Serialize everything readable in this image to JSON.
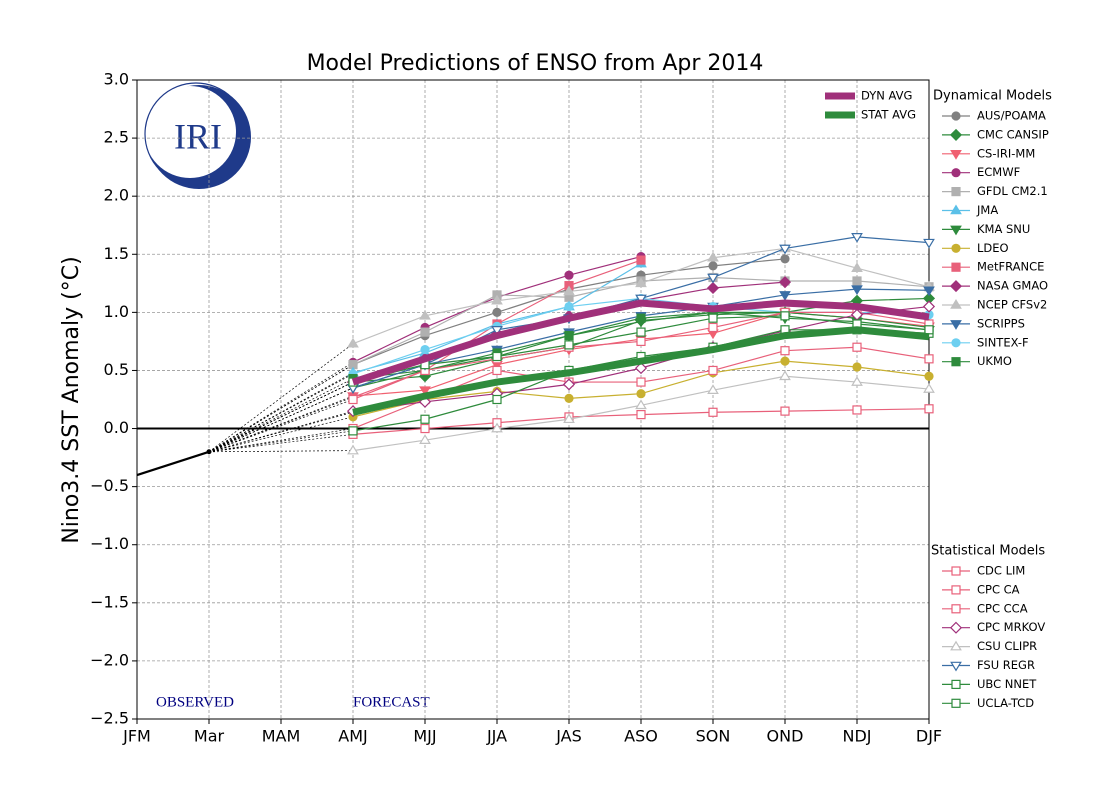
{
  "chart_data": {
    "type": "line",
    "title": "Model Predictions of ENSO from Apr 2014",
    "ylabel": "Nino3.4 SST Anomaly (°C)",
    "logo_text": "IRI",
    "annotations": {
      "observed": "OBSERVED",
      "forecast": "FORECAST"
    },
    "categories": [
      "JFM",
      "Mar",
      "MAM",
      "AMJ",
      "MJJ",
      "JJA",
      "JAS",
      "ASO",
      "SON",
      "OND",
      "NDJ",
      "DJF"
    ],
    "ylim": [
      -2.5,
      3.0
    ],
    "yticks": [
      {
        "value": -2.5,
        "label": "−2.5"
      },
      {
        "value": -2.0,
        "label": "−2.0"
      },
      {
        "value": -1.5,
        "label": "−1.5"
      },
      {
        "value": -1.0,
        "label": "−1.0"
      },
      {
        "value": -0.5,
        "label": "−0.5"
      },
      {
        "value": 0.0,
        "label": "0.0"
      },
      {
        "value": 0.5,
        "label": "0.5"
      },
      {
        "value": 1.0,
        "label": "1.0"
      },
      {
        "value": 1.5,
        "label": "1.5"
      },
      {
        "value": 2.0,
        "label": "2.0"
      },
      {
        "value": 2.5,
        "label": "2.5"
      },
      {
        "value": 3.0,
        "label": "3.0"
      }
    ],
    "grid": true,
    "observed": {
      "color": "#000000",
      "values": [
        -0.4,
        -0.2,
        null,
        null,
        null,
        null,
        null,
        null,
        null,
        null,
        null,
        null
      ]
    },
    "averages": [
      {
        "name": "DYN AVG",
        "color": "#a0307a",
        "values": [
          null,
          null,
          null,
          0.4,
          0.6,
          0.8,
          0.95,
          1.08,
          1.03,
          1.08,
          1.05,
          0.96
        ]
      },
      {
        "name": "STAT AVG",
        "color": "#2e8b3c",
        "values": [
          null,
          null,
          null,
          0.14,
          0.28,
          0.4,
          0.48,
          0.58,
          0.68,
          0.8,
          0.85,
          0.79
        ]
      }
    ],
    "dynamical": {
      "title": "Dynamical Models",
      "series": [
        {
          "name": "AUS/POAMA",
          "color": "#808080",
          "marker": "circle",
          "filled": true,
          "values": [
            null,
            null,
            null,
            0.55,
            0.8,
            1.0,
            1.2,
            1.32,
            1.4,
            1.46,
            null,
            null
          ]
        },
        {
          "name": "CMC CANSIP",
          "color": "#2e8b3c",
          "marker": "diamond",
          "filled": true,
          "values": [
            null,
            null,
            null,
            0.4,
            0.45,
            0.6,
            0.7,
            0.93,
            0.98,
            1.0,
            1.1,
            1.12
          ]
        },
        {
          "name": "CS-IRI-MM",
          "color": "#f06070",
          "marker": "tri-down",
          "filled": true,
          "values": [
            null,
            null,
            null,
            0.28,
            0.33,
            0.55,
            0.68,
            0.77,
            0.82,
            1.0,
            0.95,
            0.88
          ]
        },
        {
          "name": "ECMWF",
          "color": "#a0307a",
          "marker": "circle",
          "filled": true,
          "values": [
            null,
            null,
            null,
            0.57,
            0.87,
            1.13,
            1.32,
            1.48,
            null,
            null,
            null,
            null
          ]
        },
        {
          "name": "GFDL CM2.1",
          "color": "#b0b0b0",
          "marker": "square",
          "filled": true,
          "values": [
            null,
            null,
            null,
            0.55,
            0.83,
            1.15,
            1.13,
            1.27,
            1.3,
            1.27,
            1.27,
            1.22
          ]
        },
        {
          "name": "JMA",
          "color": "#5bc0e8",
          "marker": "tri-up",
          "filled": true,
          "values": [
            null,
            null,
            null,
            0.48,
            0.65,
            0.9,
            1.05,
            1.42,
            null,
            null,
            null,
            null
          ]
        },
        {
          "name": "KMA SNU",
          "color": "#2e8b3c",
          "marker": "tri-down",
          "filled": true,
          "values": [
            null,
            null,
            null,
            0.35,
            0.5,
            0.62,
            0.8,
            0.92,
            1.0,
            0.95,
            0.92,
            0.85
          ]
        },
        {
          "name": "LDEO",
          "color": "#c8b030",
          "marker": "circle",
          "filled": true,
          "values": [
            null,
            null,
            null,
            0.1,
            0.25,
            0.32,
            0.26,
            0.3,
            0.48,
            0.58,
            0.53,
            0.45
          ]
        },
        {
          "name": "MetFRANCE",
          "color": "#e8607a",
          "marker": "square",
          "filled": true,
          "values": [
            null,
            null,
            null,
            0.27,
            0.5,
            0.9,
            1.23,
            1.45,
            null,
            null,
            null,
            null
          ]
        },
        {
          "name": "NASA GMAO",
          "color": "#a0307a",
          "marker": "diamond",
          "filled": true,
          "values": [
            null,
            null,
            null,
            0.4,
            0.6,
            0.82,
            0.97,
            1.1,
            1.21,
            1.26,
            null,
            null
          ]
        },
        {
          "name": "NCEP CFSv2",
          "color": "#c0c0c0",
          "marker": "tri-up",
          "filled": true,
          "values": [
            null,
            null,
            null,
            0.73,
            0.97,
            1.1,
            1.18,
            1.25,
            1.47,
            1.55,
            1.38,
            1.22
          ]
        },
        {
          "name": "SCRIPPS",
          "color": "#3a6ea5",
          "marker": "tri-down",
          "filled": true,
          "values": [
            null,
            null,
            null,
            0.35,
            0.55,
            0.68,
            0.83,
            0.97,
            1.05,
            1.15,
            1.2,
            1.19
          ]
        },
        {
          "name": "SINTEX-F",
          "color": "#6dcff0",
          "marker": "circle",
          "filled": true,
          "values": [
            null,
            null,
            null,
            0.47,
            0.68,
            0.88,
            1.05,
            1.12,
            1.05,
            1.0,
            1.0,
            0.98
          ]
        },
        {
          "name": "UKMO",
          "color": "#2e8b3c",
          "marker": "square",
          "filled": true,
          "values": [
            null,
            null,
            null,
            0.43,
            0.5,
            0.65,
            0.8,
            0.95,
            1.0,
            1.0,
            0.95,
            0.87
          ]
        }
      ]
    },
    "statistical": {
      "title": "Statistical Models",
      "series": [
        {
          "name": "CDC LIM",
          "color": "#e8607a",
          "marker": "square",
          "filled": false,
          "values": [
            null,
            null,
            null,
            -0.05,
            0.0,
            0.05,
            0.1,
            0.12,
            0.14,
            0.15,
            0.16,
            0.17
          ]
        },
        {
          "name": "CPC CA",
          "color": "#e8607a",
          "marker": "square",
          "filled": false,
          "values": [
            null,
            null,
            null,
            0.0,
            0.25,
            0.5,
            0.4,
            0.4,
            0.5,
            0.67,
            0.7,
            0.6
          ]
        },
        {
          "name": "CPC CCA",
          "color": "#e8607a",
          "marker": "square",
          "filled": false,
          "values": [
            null,
            null,
            null,
            0.25,
            0.5,
            0.6,
            0.7,
            0.75,
            0.87,
            1.0,
            1.0,
            0.9
          ]
        },
        {
          "name": "CPC MRKOV",
          "color": "#a0307a",
          "marker": "diamond",
          "filled": false,
          "values": [
            null,
            null,
            null,
            0.15,
            0.23,
            0.3,
            0.38,
            0.52,
            0.7,
            0.84,
            0.98,
            1.05
          ]
        },
        {
          "name": "CSU CLIPR",
          "color": "#c0c0c0",
          "marker": "tri-up",
          "filled": false,
          "values": [
            null,
            null,
            null,
            -0.19,
            -0.1,
            0.0,
            0.08,
            0.2,
            0.33,
            0.45,
            0.4,
            0.34
          ]
        },
        {
          "name": "FSU REGR",
          "color": "#3a6ea5",
          "marker": "tri-down",
          "filled": false,
          "values": [
            null,
            null,
            null,
            0.35,
            0.55,
            0.85,
            0.95,
            1.12,
            1.3,
            1.55,
            1.65,
            1.6
          ]
        },
        {
          "name": "UBC NNET",
          "color": "#2e8b3c",
          "marker": "square",
          "filled": false,
          "values": [
            null,
            null,
            null,
            -0.02,
            0.08,
            0.25,
            0.5,
            0.62,
            0.7,
            0.85,
            0.85,
            0.82
          ]
        },
        {
          "name": "UCLA-TCD",
          "color": "#2e8b3c",
          "marker": "square",
          "filled": false,
          "values": [
            null,
            null,
            null,
            0.4,
            0.55,
            0.62,
            0.72,
            0.83,
            0.95,
            0.97,
            0.9,
            0.85
          ]
        }
      ]
    }
  }
}
